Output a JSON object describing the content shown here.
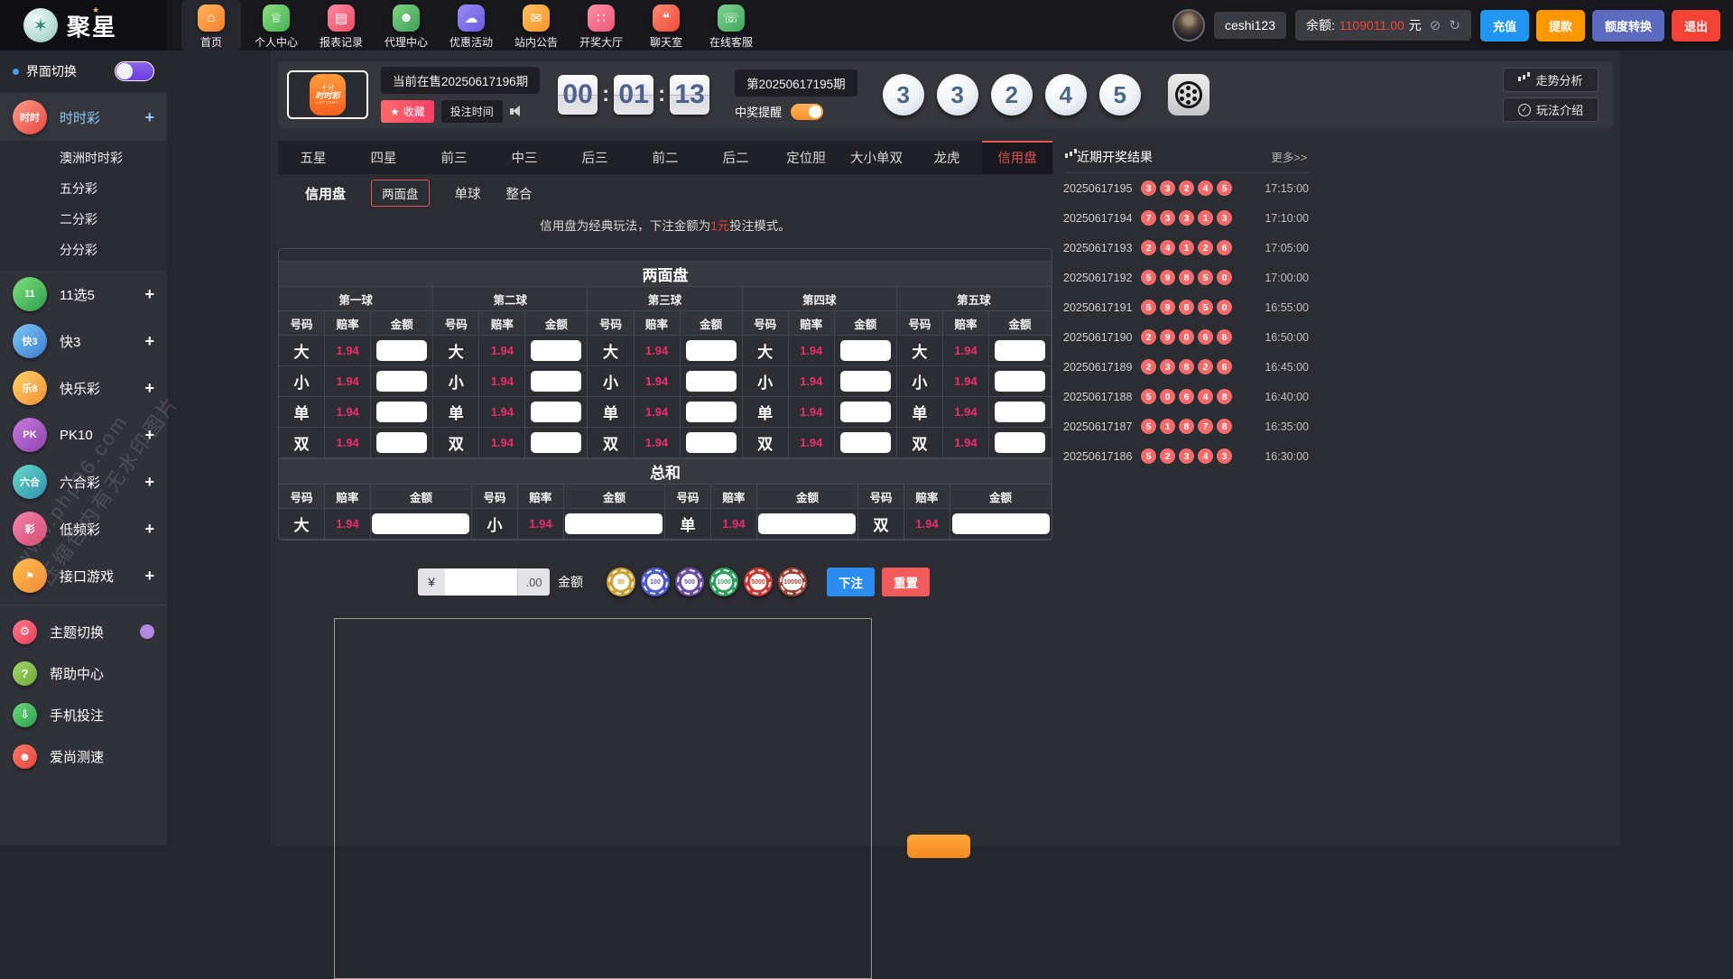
{
  "brand": {
    "name": "聚星",
    "star_glyph": "✶",
    "accent_star": "★"
  },
  "topnav": {
    "items": [
      {
        "id": "home",
        "label": "首页",
        "glyph": "⌂",
        "icon": "home-icon",
        "c1": "#ffb45c",
        "c2": "#f57f2a",
        "active": true
      },
      {
        "id": "personal",
        "label": "个人中心",
        "glyph": "♕",
        "icon": "crown-icon",
        "c1": "#8add7c",
        "c2": "#46b05a",
        "active": false
      },
      {
        "id": "report",
        "label": "报表记录",
        "glyph": "▤",
        "icon": "report-icon",
        "c1": "#ff8aa0",
        "c2": "#ee4b66",
        "active": false
      },
      {
        "id": "agent",
        "label": "代理中心",
        "glyph": "☻",
        "icon": "agent-icon",
        "c1": "#7fd47f",
        "c2": "#3fa05c",
        "active": false
      },
      {
        "id": "promo",
        "label": "优惠活动",
        "glyph": "☁",
        "icon": "promo-cloud-icon",
        "c1": "#9a8af5",
        "c2": "#6a5ae0",
        "active": false
      },
      {
        "id": "notice",
        "label": "站内公告",
        "glyph": "✉",
        "icon": "mail-icon",
        "c1": "#ffc25c",
        "c2": "#f5922a",
        "active": false
      },
      {
        "id": "lottery-hall",
        "label": "开奖大厅",
        "glyph": "∷",
        "icon": "lottery-hall-icon",
        "c1": "#ff90a8",
        "c2": "#ee5577",
        "active": false
      },
      {
        "id": "chat",
        "label": "聊天室",
        "glyph": "❝",
        "icon": "chat-bubble-icon",
        "c1": "#ff8a70",
        "c2": "#ee4a3a",
        "active": false
      },
      {
        "id": "service",
        "label": "在线客服",
        "glyph": "☏",
        "icon": "headset-icon",
        "c1": "#7fd48f",
        "c2": "#3fa55c",
        "active": false
      }
    ],
    "user": {
      "name": "ceshi123",
      "balance_label": "余额:",
      "balance": "1109011.00",
      "currency": "元",
      "eye_glyph": "⊘",
      "refresh_glyph": "↻"
    },
    "actions": [
      {
        "id": "recharge",
        "label": "充值",
        "color": "#2196f3"
      },
      {
        "id": "withdraw",
        "label": "提款",
        "color": "#ff9800"
      },
      {
        "id": "transfer",
        "label": "额度转换",
        "color": "#5c6bc0"
      },
      {
        "id": "logout",
        "label": "退出",
        "color": "#f44336"
      }
    ]
  },
  "sidebar": {
    "toggle_label": "界面切换",
    "expand_glyph": "+",
    "games": [
      {
        "id": "shishicai",
        "label": "时时彩",
        "glyph": "时时",
        "c1": "#ff9d8a",
        "c2": "#e8453c",
        "active": true,
        "plus": true,
        "children": [
          "澳洲时时彩",
          "五分彩",
          "二分彩",
          "分分彩"
        ]
      },
      {
        "id": "11xuan5",
        "label": "11选5",
        "glyph": "11",
        "c1": "#7ee07a",
        "c2": "#2f9e4f",
        "plus": true
      },
      {
        "id": "kuai3",
        "label": "快3",
        "glyph": "快3",
        "c1": "#7ec8f0",
        "c2": "#3a7bd5",
        "plus": true
      },
      {
        "id": "kuailecai",
        "label": "快乐彩",
        "glyph": "乐8",
        "c1": "#ffd36a",
        "c2": "#f09035",
        "plus": true
      },
      {
        "id": "pk10",
        "label": "PK10",
        "glyph": "PK",
        "c1": "#c77ae0",
        "c2": "#8e44ad",
        "plus": true
      },
      {
        "id": "liuhecai",
        "label": "六合彩",
        "glyph": "六合",
        "c1": "#6adbc8",
        "c2": "#2e8fb0",
        "plus": true
      },
      {
        "id": "dipincai",
        "label": "低频彩",
        "glyph": "彩",
        "c1": "#f08ab0",
        "c2": "#d8436f",
        "plus": true
      },
      {
        "id": "jiekou",
        "label": "接口游戏",
        "glyph": "⚑",
        "c1": "#ffc24a",
        "c2": "#f0883a",
        "plus": true
      }
    ],
    "footer": [
      {
        "id": "theme",
        "label": "主题切换",
        "glyph": "⚙",
        "c1": "#ff7a8a",
        "c2": "#e8405a",
        "dot": true
      },
      {
        "id": "help",
        "label": "帮助中心",
        "glyph": "?",
        "c1": "#a8d86a",
        "c2": "#6aa83a"
      },
      {
        "id": "mobile",
        "label": "手机投注",
        "glyph": "⇩",
        "c1": "#6ad87a",
        "c2": "#2f9e4f"
      },
      {
        "id": "speed",
        "label": "爱尚测速",
        "glyph": "☻",
        "c1": "#ff7a6a",
        "c2": "#e0453c"
      }
    ]
  },
  "watermark": {
    "line1": "www.php96.com",
    "line2": "压缩包内有无水印图片"
  },
  "header": {
    "logo": {
      "t1": "十分",
      "t2": "时时彩",
      "t3": "LOTTERY"
    },
    "selling": "当前在售20250617196期",
    "fav_star": "★",
    "fav": "收藏",
    "bet_time": "投注时间",
    "timer": {
      "hh": "00",
      "mm": "01",
      "ss": "13",
      "sep": ":"
    },
    "last_issue": "第20250617195期",
    "alert_label": "中奖提醒",
    "balls": [
      "3",
      "3",
      "2",
      "4",
      "5"
    ],
    "trend": "走势分析",
    "howto": "玩法介绍",
    "howto_check": "✓"
  },
  "tabs": {
    "items": [
      "五星",
      "四星",
      "前三",
      "中三",
      "后三",
      "前二",
      "后二",
      "定位胆",
      "大小单双",
      "龙虎",
      "信用盘"
    ],
    "active": "信用盘"
  },
  "subtabs": {
    "items": [
      "信用盘",
      "两面盘",
      "单球",
      "整合"
    ],
    "active": "两面盘"
  },
  "notice": {
    "pre": "信用盘为经典玩法，下注金额为",
    "hl": "1元",
    "post": "投注模式。"
  },
  "board": {
    "title": "两面盘",
    "ball_headers": [
      "第一球",
      "第二球",
      "第三球",
      "第四球",
      "第五球"
    ],
    "col_headers": [
      "号码",
      "赔率",
      "金额"
    ],
    "rows": [
      {
        "label": "大",
        "odds": "1.94"
      },
      {
        "label": "小",
        "odds": "1.94"
      },
      {
        "label": "单",
        "odds": "1.94"
      },
      {
        "label": "双",
        "odds": "1.94"
      }
    ],
    "sum_title": "总和",
    "sum_row": [
      {
        "label": "大",
        "odds": "1.94"
      },
      {
        "label": "小",
        "odds": "1.94"
      },
      {
        "label": "单",
        "odds": "1.94"
      },
      {
        "label": "双",
        "odds": "1.94"
      }
    ]
  },
  "bet_controls": {
    "currency": "¥",
    "amount_value": "",
    "decimal": ".00",
    "amount_label": "金额",
    "chips": [
      {
        "value": "50",
        "color": "#c9a137"
      },
      {
        "value": "100",
        "color": "#4f5bc5"
      },
      {
        "value": "500",
        "color": "#6a4f9e"
      },
      {
        "value": "1000",
        "color": "#2f9e5f"
      },
      {
        "value": "5000",
        "color": "#c43c35"
      },
      {
        "value": "10000",
        "color": "#99433a"
      }
    ],
    "submit": "下注",
    "reset": "重置"
  },
  "results": {
    "title": "近期开奖结果",
    "more": "更多>>",
    "rows": [
      {
        "issue": "20250617195",
        "balls": [
          "3",
          "3",
          "2",
          "4",
          "5"
        ],
        "time": "17:15:00"
      },
      {
        "issue": "20250617194",
        "balls": [
          "7",
          "3",
          "3",
          "1",
          "3"
        ],
        "time": "17:10:00"
      },
      {
        "issue": "20250617193",
        "balls": [
          "2",
          "4",
          "1",
          "2",
          "6"
        ],
        "time": "17:05:00"
      },
      {
        "issue": "20250617192",
        "balls": [
          "5",
          "9",
          "8",
          "5",
          "0"
        ],
        "time": "17:00:00"
      },
      {
        "issue": "20250617191",
        "balls": [
          "5",
          "9",
          "8",
          "5",
          "0"
        ],
        "time": "16:55:00"
      },
      {
        "issue": "20250617190",
        "balls": [
          "2",
          "9",
          "0",
          "6",
          "6"
        ],
        "time": "16:50:00"
      },
      {
        "issue": "20250617189",
        "balls": [
          "2",
          "3",
          "8",
          "2",
          "6"
        ],
        "time": "16:45:00"
      },
      {
        "issue": "20250617188",
        "balls": [
          "5",
          "0",
          "6",
          "4",
          "8"
        ],
        "time": "16:40:00"
      },
      {
        "issue": "20250617187",
        "balls": [
          "5",
          "1",
          "8",
          "7",
          "8"
        ],
        "time": "16:35:00"
      },
      {
        "issue": "20250617186",
        "balls": [
          "5",
          "2",
          "3",
          "4",
          "3"
        ],
        "time": "16:30:00"
      }
    ]
  }
}
